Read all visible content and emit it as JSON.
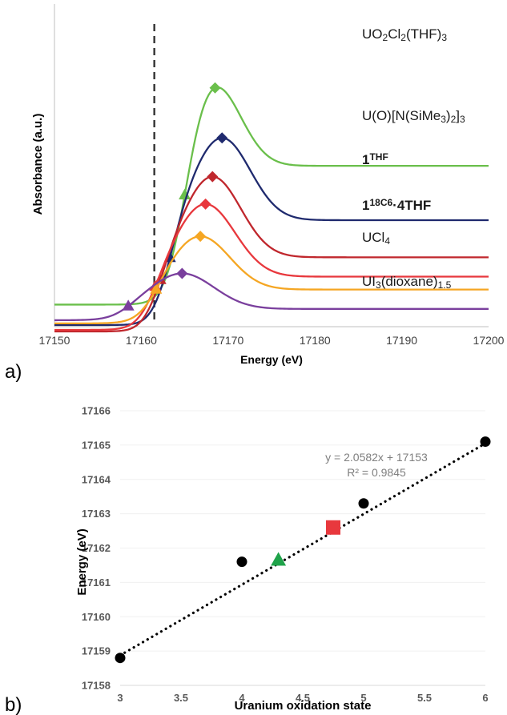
{
  "chart_data": [
    {
      "panel_label": "a)",
      "type": "line",
      "xlabel": "Energy (eV)",
      "ylabel": "Absorbance (a.u.)",
      "xlim": [
        17150,
        17200
      ],
      "x_ticks": [
        "17150",
        "17160",
        "17170",
        "17180",
        "17190",
        "17200"
      ],
      "dashed_line_x": 17161.5,
      "series": [
        {
          "name": "UO2Cl2(THF)3",
          "label_parts": [
            [
              "UO",
              ""
            ],
            [
              "2",
              "sub"
            ],
            [
              "Cl",
              ""
            ],
            [
              "2",
              "sub"
            ],
            [
              "(THF)",
              ""
            ],
            [
              "3",
              "sub"
            ]
          ],
          "color": "#6abf4b",
          "edge": 17165.0,
          "peak": 17168.5,
          "base": 0.74,
          "height": 0.68,
          "tail": 0.43,
          "width": 4.2,
          "triangle_x": 17165.0,
          "diamond_x": 17168.5
        },
        {
          "name": "U(O)[N(SiMe3)2]3",
          "label_parts": [
            [
              "U(O)[N(SiMe",
              ""
            ],
            [
              "3",
              "sub"
            ],
            [
              ")",
              ""
            ],
            [
              "2",
              "sub"
            ],
            [
              "]",
              ""
            ],
            [
              "3",
              "sub"
            ]
          ],
          "color": "#1f2a6e",
          "edge": 17163.3,
          "peak": 17169.3,
          "base": 0.585,
          "height": 0.58,
          "tail": 0.325,
          "width": 4.6,
          "triangle_x": 17163.3,
          "diamond_x": 17169.3
        },
        {
          "name": "1THF",
          "label_parts": [
            [
              "1",
              ""
            ],
            [
              "THF",
              "sup"
            ]
          ],
          "color": "#c0272d",
          "edge": 17162.2,
          "peak": 17168.2,
          "base": 0.465,
          "height": 0.48,
          "tail": 0.23,
          "width": 4.6,
          "triangle_x": 17162.2,
          "diamond_x": 17168.2
        },
        {
          "name": "118C6·4THF",
          "label_parts": [
            [
              "1",
              ""
            ],
            [
              "18C6",
              "sup"
            ],
            [
              "·4THF",
              ""
            ]
          ],
          "color": "#e8383d",
          "edge": 17161.6,
          "peak": 17167.4,
          "base": 0.38,
          "height": 0.39,
          "tail": 0.165,
          "width": 4.8,
          "triangle_x": 17161.6,
          "diamond_x": 17167.4
        },
        {
          "name": "UCl4",
          "label_parts": [
            [
              "UCl",
              ""
            ],
            [
              "4",
              "sub"
            ]
          ],
          "color": "#f5a623",
          "edge": 17161.7,
          "peak": 17166.8,
          "base": 0.28,
          "height": 0.27,
          "tail": 0.105,
          "width": 4.8,
          "triangle_x": 17161.7,
          "diamond_x": 17166.8
        },
        {
          "name": "UI3(dioxane)1.5",
          "label_parts": [
            [
              "UI",
              ""
            ],
            [
              "3",
              "sub"
            ],
            [
              "(dioxane)",
              ""
            ],
            [
              "1.5",
              "sub"
            ]
          ],
          "color": "#7a3f9d",
          "edge": 17158.5,
          "peak": 17164.7,
          "base": 0.165,
          "height": 0.145,
          "tail": 0.035,
          "width": 5.2,
          "triangle_x": 17158.5,
          "diamond_x": 17164.7
        }
      ]
    },
    {
      "panel_label": "b)",
      "type": "scatter",
      "xlabel": "Uranium oxidation state",
      "ylabel": "Energy (eV)",
      "xlim": [
        3,
        6
      ],
      "ylim": [
        17158,
        17166
      ],
      "x_ticks": [
        "3",
        "3.5",
        "4",
        "4.5",
        "5",
        "5.5",
        "6"
      ],
      "y_ticks": [
        "17158",
        "17159",
        "17160",
        "17161",
        "17162",
        "17163",
        "17164",
        "17165",
        "17166"
      ],
      "points": [
        {
          "x": 3,
          "y": 17158.8,
          "shape": "circle",
          "color": "#000000"
        },
        {
          "x": 4,
          "y": 17161.6,
          "shape": "circle",
          "color": "#000000"
        },
        {
          "x": 5,
          "y": 17163.3,
          "shape": "circle",
          "color": "#000000"
        },
        {
          "x": 6,
          "y": 17165.1,
          "shape": "circle",
          "color": "#000000"
        },
        {
          "x": 4.3,
          "y": 17161.65,
          "shape": "triangle",
          "color": "#1fa34a"
        },
        {
          "x": 4.75,
          "y": 17162.6,
          "shape": "square",
          "color": "#e8383d"
        }
      ],
      "trendline": {
        "slope": 2.0582,
        "intercept": 17152.7,
        "x_range": [
          3,
          6
        ]
      },
      "equation": "y = 2.0582x + 17153",
      "r_squared": "R² = 0.9845"
    }
  ]
}
